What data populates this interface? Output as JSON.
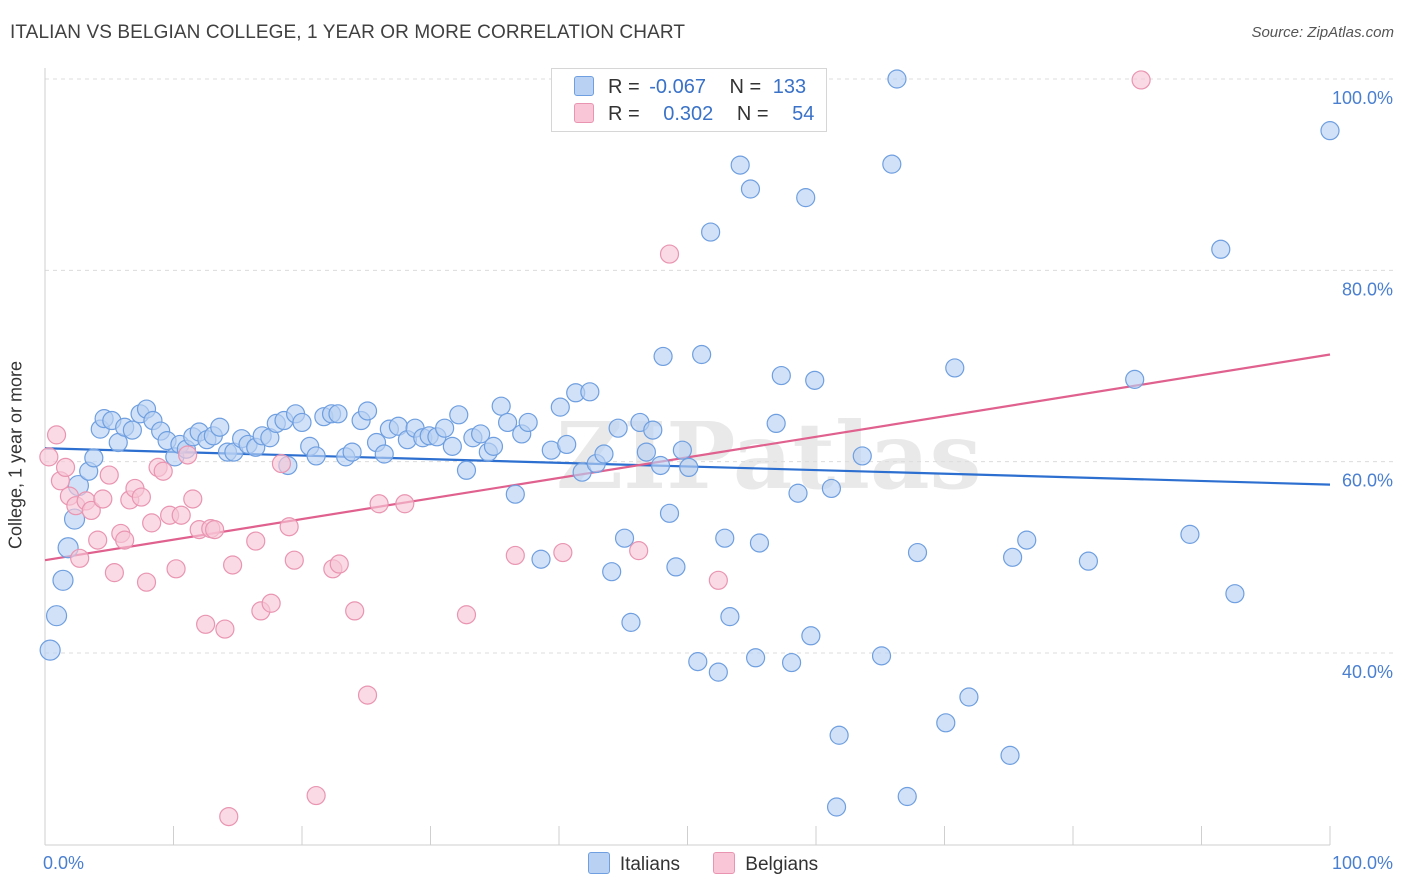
{
  "title": "ITALIAN VS BELGIAN COLLEGE, 1 YEAR OR MORE CORRELATION CHART",
  "source": "Source: ZipAtlas.com",
  "watermark": "ZIPatlas",
  "colors": {
    "italians_fill": "#b9d1f3",
    "italians_stroke": "#6f9fe0",
    "italians_line": "#2c6fd0",
    "belgians_fill": "#f8c6d6",
    "belgians_stroke": "#e995b1",
    "belgians_line": "#e0608e",
    "tick_text": "#4a7fd0",
    "grid": "#dcdcdc"
  },
  "legend": {
    "rows": [
      {
        "r_label": "R =",
        "r_value": "-0.067",
        "n_label": "N =",
        "n_value": "133"
      },
      {
        "r_label": "R =",
        "r_value": "0.302",
        "n_label": "N =",
        "n_value": "54"
      }
    ]
  },
  "chart_data": {
    "type": "scatter",
    "title": "ITALIAN VS BELGIAN COLLEGE, 1 YEAR OR MORE CORRELATION CHART",
    "xlabel": "",
    "ylabel": "College, 1 year or more",
    "xlim": [
      0,
      100
    ],
    "ylim": [
      20,
      102
    ],
    "y_ticks": [
      {
        "value": 40,
        "label": "40.0%"
      },
      {
        "value": 60,
        "label": "60.0%"
      },
      {
        "value": 80,
        "label": "80.0%"
      },
      {
        "value": 100,
        "label": "100.0%"
      }
    ],
    "x_tick_labels": [
      {
        "value": 0,
        "label": "0.0%"
      },
      {
        "value": 100,
        "label": "100.0%"
      }
    ],
    "grid": true,
    "legend_position": "top-center",
    "series": [
      {
        "name": "Italians",
        "r": -0.067,
        "n": 133,
        "trend": [
          [
            0,
            61.4
          ],
          [
            100,
            57.6
          ]
        ],
        "points": [
          [
            0.4,
            40.3
          ],
          [
            0.9,
            43.9
          ],
          [
            1.4,
            47.6
          ],
          [
            1.8,
            51
          ],
          [
            2.3,
            54
          ],
          [
            2.6,
            57.5
          ],
          [
            3.4,
            59
          ],
          [
            3.8,
            60.4
          ],
          [
            4.3,
            63.4
          ],
          [
            4.6,
            64.5
          ],
          [
            5.2,
            64.3
          ],
          [
            5.7,
            62
          ],
          [
            6.2,
            63.6
          ],
          [
            6.8,
            63.3
          ],
          [
            7.4,
            65
          ],
          [
            7.9,
            65.5
          ],
          [
            8.4,
            64.3
          ],
          [
            9,
            63.2
          ],
          [
            9.5,
            62.2
          ],
          [
            10.1,
            60.5
          ],
          [
            10.5,
            61.8
          ],
          [
            11,
            61.3
          ],
          [
            11.5,
            62.6
          ],
          [
            12,
            63.1
          ],
          [
            12.6,
            62.3
          ],
          [
            13.1,
            62.7
          ],
          [
            13.6,
            63.6
          ],
          [
            14.2,
            61
          ],
          [
            14.7,
            61
          ],
          [
            15.3,
            62.4
          ],
          [
            15.8,
            61.8
          ],
          [
            16.4,
            61.5
          ],
          [
            16.9,
            62.7
          ],
          [
            17.5,
            62.5
          ],
          [
            18,
            64
          ],
          [
            18.6,
            64.3
          ],
          [
            18.9,
            59.6
          ],
          [
            19.5,
            65
          ],
          [
            20,
            64.1
          ],
          [
            20.6,
            61.6
          ],
          [
            21.1,
            60.6
          ],
          [
            21.7,
            64.7
          ],
          [
            22.3,
            65
          ],
          [
            22.8,
            65
          ],
          [
            23.4,
            60.5
          ],
          [
            23.9,
            61
          ],
          [
            24.6,
            64.3
          ],
          [
            25.1,
            65.3
          ],
          [
            25.8,
            62
          ],
          [
            26.4,
            60.8
          ],
          [
            26.8,
            63.4
          ],
          [
            27.5,
            63.7
          ],
          [
            28.2,
            62.3
          ],
          [
            28.8,
            63.5
          ],
          [
            29.4,
            62.5
          ],
          [
            29.9,
            62.7
          ],
          [
            30.5,
            62.6
          ],
          [
            31.1,
            63.5
          ],
          [
            31.7,
            61.6
          ],
          [
            32.2,
            64.9
          ],
          [
            32.8,
            59.1
          ],
          [
            33.3,
            62.5
          ],
          [
            33.9,
            62.9
          ],
          [
            34.5,
            61
          ],
          [
            34.9,
            61.6
          ],
          [
            35.5,
            65.8
          ],
          [
            36,
            64.1
          ],
          [
            36.6,
            56.6
          ],
          [
            37.1,
            62.9
          ],
          [
            37.6,
            64.1
          ],
          [
            38.6,
            49.8
          ],
          [
            39.4,
            61.2
          ],
          [
            40.1,
            65.7
          ],
          [
            40.6,
            61.8
          ],
          [
            41.3,
            67.2
          ],
          [
            41.8,
            58.9
          ],
          [
            42.4,
            67.3
          ],
          [
            42.9,
            59.8
          ],
          [
            43.5,
            60.8
          ],
          [
            44.1,
            48.5
          ],
          [
            44.6,
            63.5
          ],
          [
            45.1,
            52
          ],
          [
            45.6,
            43.2
          ],
          [
            46.3,
            64.1
          ],
          [
            46.8,
            61
          ],
          [
            47.3,
            63.3
          ],
          [
            47.9,
            59.6
          ],
          [
            48.1,
            71
          ],
          [
            48.6,
            54.6
          ],
          [
            49.1,
            49
          ],
          [
            49.6,
            61.2
          ],
          [
            50.1,
            59.4
          ],
          [
            50.8,
            39.1
          ],
          [
            51.1,
            71.2
          ],
          [
            51.8,
            84
          ],
          [
            52.4,
            38
          ],
          [
            52.9,
            52
          ],
          [
            53.3,
            43.8
          ],
          [
            54.1,
            91
          ],
          [
            54.9,
            88.5
          ],
          [
            55.3,
            39.5
          ],
          [
            55.6,
            51.5
          ],
          [
            57.3,
            69
          ],
          [
            56.9,
            64
          ],
          [
            58.1,
            39
          ],
          [
            58.6,
            56.7
          ],
          [
            59,
            97.7
          ],
          [
            59.2,
            87.6
          ],
          [
            59.6,
            41.8
          ],
          [
            59.9,
            68.5
          ],
          [
            61.8,
            31.4
          ],
          [
            61.2,
            57.2
          ],
          [
            61.6,
            23.9
          ],
          [
            63.6,
            60.6
          ],
          [
            65.1,
            39.7
          ],
          [
            65.9,
            91.1
          ],
          [
            66.3,
            100
          ],
          [
            67.1,
            25
          ],
          [
            67.9,
            50.5
          ],
          [
            70.1,
            32.7
          ],
          [
            70.8,
            69.8
          ],
          [
            71.9,
            35.4
          ],
          [
            75.1,
            29.3
          ],
          [
            75.3,
            50
          ],
          [
            76.4,
            51.8
          ],
          [
            81.2,
            49.6
          ],
          [
            84.8,
            68.6
          ],
          [
            89.1,
            52.4
          ],
          [
            91.5,
            82.2
          ],
          [
            92.6,
            46.2
          ],
          [
            100,
            94.6
          ]
        ]
      },
      {
        "name": "Belgians",
        "r": 0.302,
        "n": 54,
        "trend": [
          [
            0,
            49.7
          ],
          [
            100,
            71.2
          ]
        ],
        "points": [
          [
            0.3,
            60.5
          ],
          [
            0.9,
            62.8
          ],
          [
            1.2,
            58
          ],
          [
            1.6,
            59.4
          ],
          [
            1.9,
            56.4
          ],
          [
            2.4,
            55.4
          ],
          [
            2.7,
            49.9
          ],
          [
            3.2,
            55.9
          ],
          [
            3.6,
            54.9
          ],
          [
            4.1,
            51.8
          ],
          [
            4.5,
            56.1
          ],
          [
            5,
            58.6
          ],
          [
            5.4,
            48.4
          ],
          [
            5.9,
            52.5
          ],
          [
            6.2,
            51.8
          ],
          [
            6.6,
            56
          ],
          [
            7,
            57.2
          ],
          [
            7.5,
            56.3
          ],
          [
            7.9,
            47.4
          ],
          [
            8.3,
            53.6
          ],
          [
            8.8,
            59.4
          ],
          [
            9.2,
            59
          ],
          [
            9.7,
            54.4
          ],
          [
            10.2,
            48.8
          ],
          [
            10.6,
            54.4
          ],
          [
            11.1,
            60.7
          ],
          [
            11.5,
            56.1
          ],
          [
            12,
            52.9
          ],
          [
            12.5,
            43
          ],
          [
            12.9,
            53
          ],
          [
            13.2,
            52.9
          ],
          [
            14,
            42.5
          ],
          [
            14.3,
            22.9
          ],
          [
            14.6,
            49.2
          ],
          [
            16.4,
            51.7
          ],
          [
            16.8,
            44.4
          ],
          [
            17.6,
            45.2
          ],
          [
            18.4,
            59.8
          ],
          [
            19,
            53.2
          ],
          [
            19.4,
            49.7
          ],
          [
            21.1,
            25.1
          ],
          [
            22.4,
            48.8
          ],
          [
            22.9,
            49.3
          ],
          [
            24.1,
            44.4
          ],
          [
            25.1,
            35.6
          ],
          [
            26,
            55.6
          ],
          [
            28,
            55.6
          ],
          [
            32.8,
            44
          ],
          [
            36.6,
            50.2
          ],
          [
            40.3,
            50.5
          ],
          [
            46.2,
            50.7
          ],
          [
            48.6,
            81.7
          ],
          [
            52.4,
            47.6
          ],
          [
            85.3,
            99.9
          ]
        ]
      }
    ]
  }
}
